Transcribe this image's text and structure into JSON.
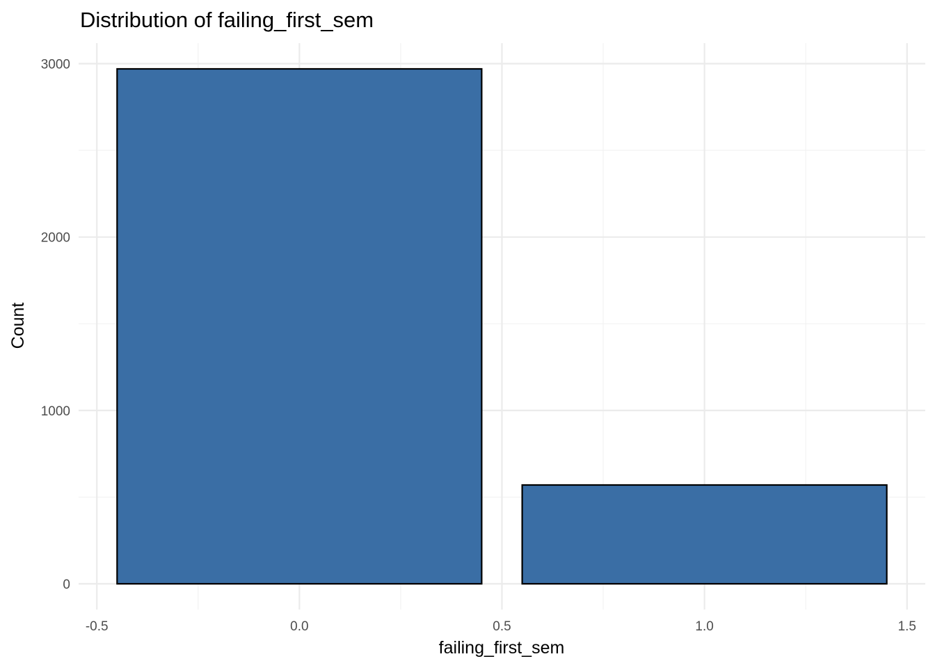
{
  "chart_data": {
    "type": "bar",
    "title": "Distribution of failing_first_sem",
    "xlabel": "failing_first_sem",
    "ylabel": "Count",
    "x": [
      0,
      1
    ],
    "values": [
      2970,
      570
    ],
    "bar_width": 0.9,
    "xlim": [
      -0.545,
      1.545
    ],
    "ylim": [
      -148.5,
      3118.5
    ],
    "x_ticks": [
      -0.5,
      0.0,
      0.5,
      1.0,
      1.5
    ],
    "x_tick_labels": [
      "-0.5",
      "0.0",
      "0.5",
      "1.0",
      "1.5"
    ],
    "x_minor_ticks": [
      -0.25,
      0.25,
      0.75,
      1.25
    ],
    "y_ticks": [
      0,
      1000,
      2000,
      3000
    ],
    "y_tick_labels": [
      "0",
      "1000",
      "2000",
      "3000"
    ],
    "y_minor_ticks": [
      500,
      1500,
      2500
    ],
    "bar_color": "#3A6EA5",
    "bar_outline": "#000000",
    "grid": true,
    "legend": "none"
  }
}
